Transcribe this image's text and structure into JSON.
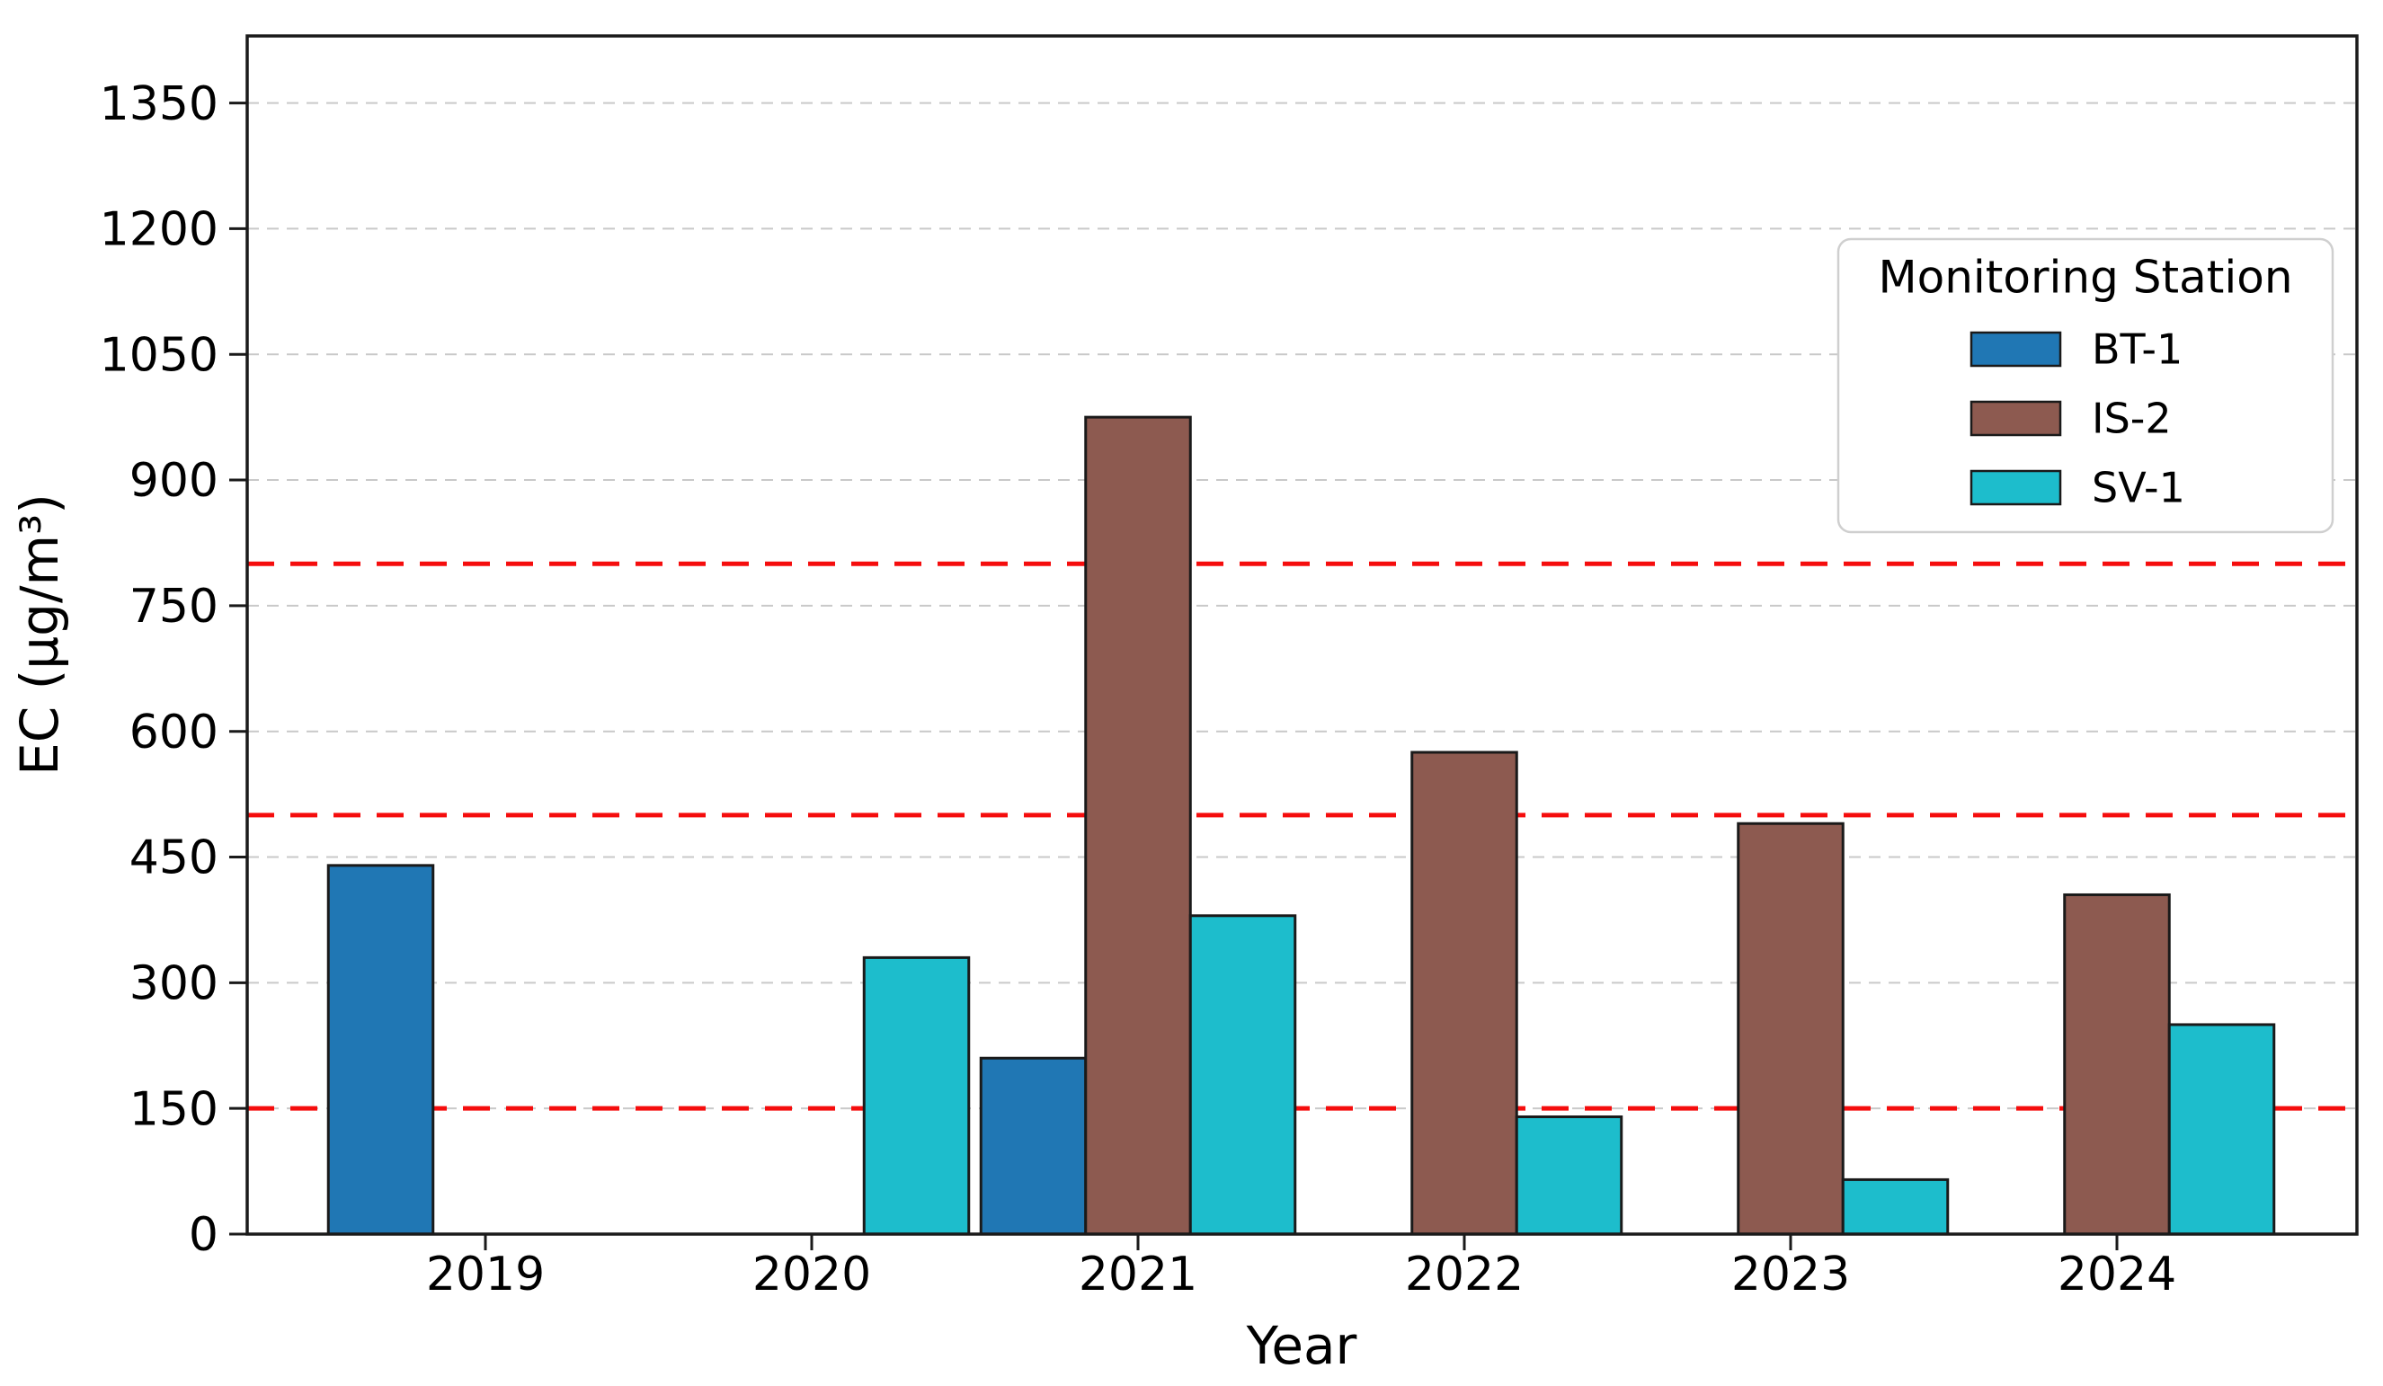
{
  "chart_data": {
    "type": "bar",
    "title": "",
    "xlabel": "Year",
    "ylabel": "EC (µg/m³)",
    "categories": [
      "2019",
      "2020",
      "2021",
      "2022",
      "2023",
      "2024"
    ],
    "series": [
      {
        "name": "BT-1",
        "color": "#2077b4",
        "values": [
          440,
          null,
          210,
          null,
          null,
          null
        ]
      },
      {
        "name": "IS-2",
        "color": "#8d5a50",
        "values": [
          null,
          null,
          975,
          575,
          490,
          405
        ]
      },
      {
        "name": "SV-1",
        "color": "#1dbdcc",
        "values": [
          null,
          330,
          380,
          140,
          65,
          250
        ]
      }
    ],
    "ylim": [
      0,
      1430
    ],
    "yticks": [
      0,
      150,
      300,
      450,
      600,
      750,
      900,
      1050,
      1200,
      1350
    ],
    "reference_lines": {
      "values": [
        150,
        500,
        800
      ],
      "color": "#f50d0d",
      "style": "dashed"
    },
    "grid": {
      "axis": "y",
      "style": "dashed",
      "color": "#c9c9c9"
    },
    "legend": {
      "title": "Monitoring Station",
      "position": "upper right"
    },
    "colors": {
      "bar_edge": "#1a1a1a",
      "spine": "#1a1a1a",
      "tick_label": "#000000",
      "legend_border": "#cfcfcf",
      "legend_background": "#ffffff"
    }
  }
}
